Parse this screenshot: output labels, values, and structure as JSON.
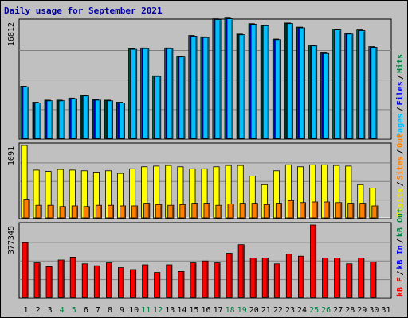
{
  "chart_data": {
    "type": "bar",
    "title": "Daily usage for September 2021",
    "days": [
      "1",
      "2",
      "3",
      "4",
      "5",
      "6",
      "7",
      "8",
      "9",
      "10",
      "11",
      "12",
      "13",
      "14",
      "15",
      "16",
      "17",
      "18",
      "19",
      "20",
      "21",
      "22",
      "23",
      "24",
      "25",
      "26",
      "27",
      "28",
      "29",
      "30",
      "31"
    ],
    "weekend_days": [
      "4",
      "5",
      "11",
      "12",
      "18",
      "19",
      "25",
      "26"
    ],
    "panels": [
      {
        "id": "pages",
        "max_label": "16812",
        "ymax": 16812,
        "legend": [
          "Pages",
          "Files",
          "Hits"
        ],
        "legend_colors": [
          "#00c0ff",
          "#0000ff",
          "#008040"
        ],
        "series": [
          {
            "name": "Hits",
            "color": "#00805c",
            "values": [
              7500,
              5200,
              5500,
              5500,
              5800,
              6200,
              5600,
              5500,
              5200,
              12900,
              13000,
              9000,
              13000,
              11800,
              14800,
              14600,
              17200,
              17300,
              15000,
              16500,
              16300,
              14300,
              16600,
              16000,
              13400,
              12300,
              15700,
              15100,
              15600,
              13200,
              null
            ]
          },
          {
            "name": "Files",
            "color": "#0000ff",
            "values": [
              7400,
              5100,
              5400,
              5400,
              5700,
              6100,
              5500,
              5400,
              5100,
              12800,
              12900,
              8900,
              12900,
              11700,
              14700,
              14500,
              17100,
              17200,
              14900,
              16400,
              16200,
              14200,
              16500,
              15900,
              13300,
              12200,
              15600,
              15000,
              15500,
              13100,
              null
            ]
          },
          {
            "name": "Pages",
            "color": "#00c0ff",
            "values": [
              7400,
              5100,
              5400,
              5400,
              5700,
              6100,
              5500,
              5400,
              5100,
              12800,
              12900,
              8900,
              12900,
              11700,
              14700,
              14500,
              17100,
              17200,
              14900,
              16400,
              16200,
              14200,
              16500,
              15900,
              13300,
              12200,
              15600,
              15000,
              15500,
              13100,
              null
            ]
          }
        ]
      },
      {
        "id": "visits",
        "max_label": "1091",
        "ymax": 1091,
        "legend": [
          "Visits",
          "Sites",
          "Out"
        ],
        "legend_colors": [
          "#f0f000",
          "#ff8000",
          "#ff8000"
        ],
        "series": [
          {
            "name": "Visits",
            "color": "#ffff00",
            "values": [
              1091,
              720,
              700,
              730,
              720,
              710,
              690,
              710,
              670,
              740,
              770,
              780,
              790,
              770,
              740,
              740,
              770,
              790,
              790,
              630,
              500,
              710,
              800,
              770,
              800,
              800,
              790,
              780,
              500,
              450,
              null
            ]
          },
          {
            "name": "Sites",
            "color": "#ff8000",
            "values": [
              280,
              190,
              190,
              170,
              180,
              170,
              190,
              190,
              180,
              180,
              220,
              200,
              190,
              200,
              220,
              220,
              190,
              210,
              220,
              220,
              200,
              220,
              260,
              230,
              240,
              240,
              230,
              220,
              220,
              180,
              null
            ]
          }
        ]
      },
      {
        "id": "kbf",
        "max_label": "377345",
        "ymax": 377345,
        "legend": [
          "kB F",
          "kB In",
          "kB Out"
        ],
        "legend_colors": [
          "#ff0000",
          "#0000ff",
          "#008040"
        ],
        "series": [
          {
            "name": "kB F",
            "color": "#ff0000",
            "values": [
              285000,
              180000,
              160000,
              195000,
              210000,
              175000,
              165000,
              180000,
              155000,
              145000,
              170000,
              130000,
              170000,
              135000,
              180000,
              190000,
              180000,
              230000,
              275000,
              205000,
              205000,
              175000,
              225000,
              215000,
              377345,
              205000,
              205000,
              175000,
              205000,
              185000,
              null
            ]
          }
        ]
      }
    ]
  }
}
